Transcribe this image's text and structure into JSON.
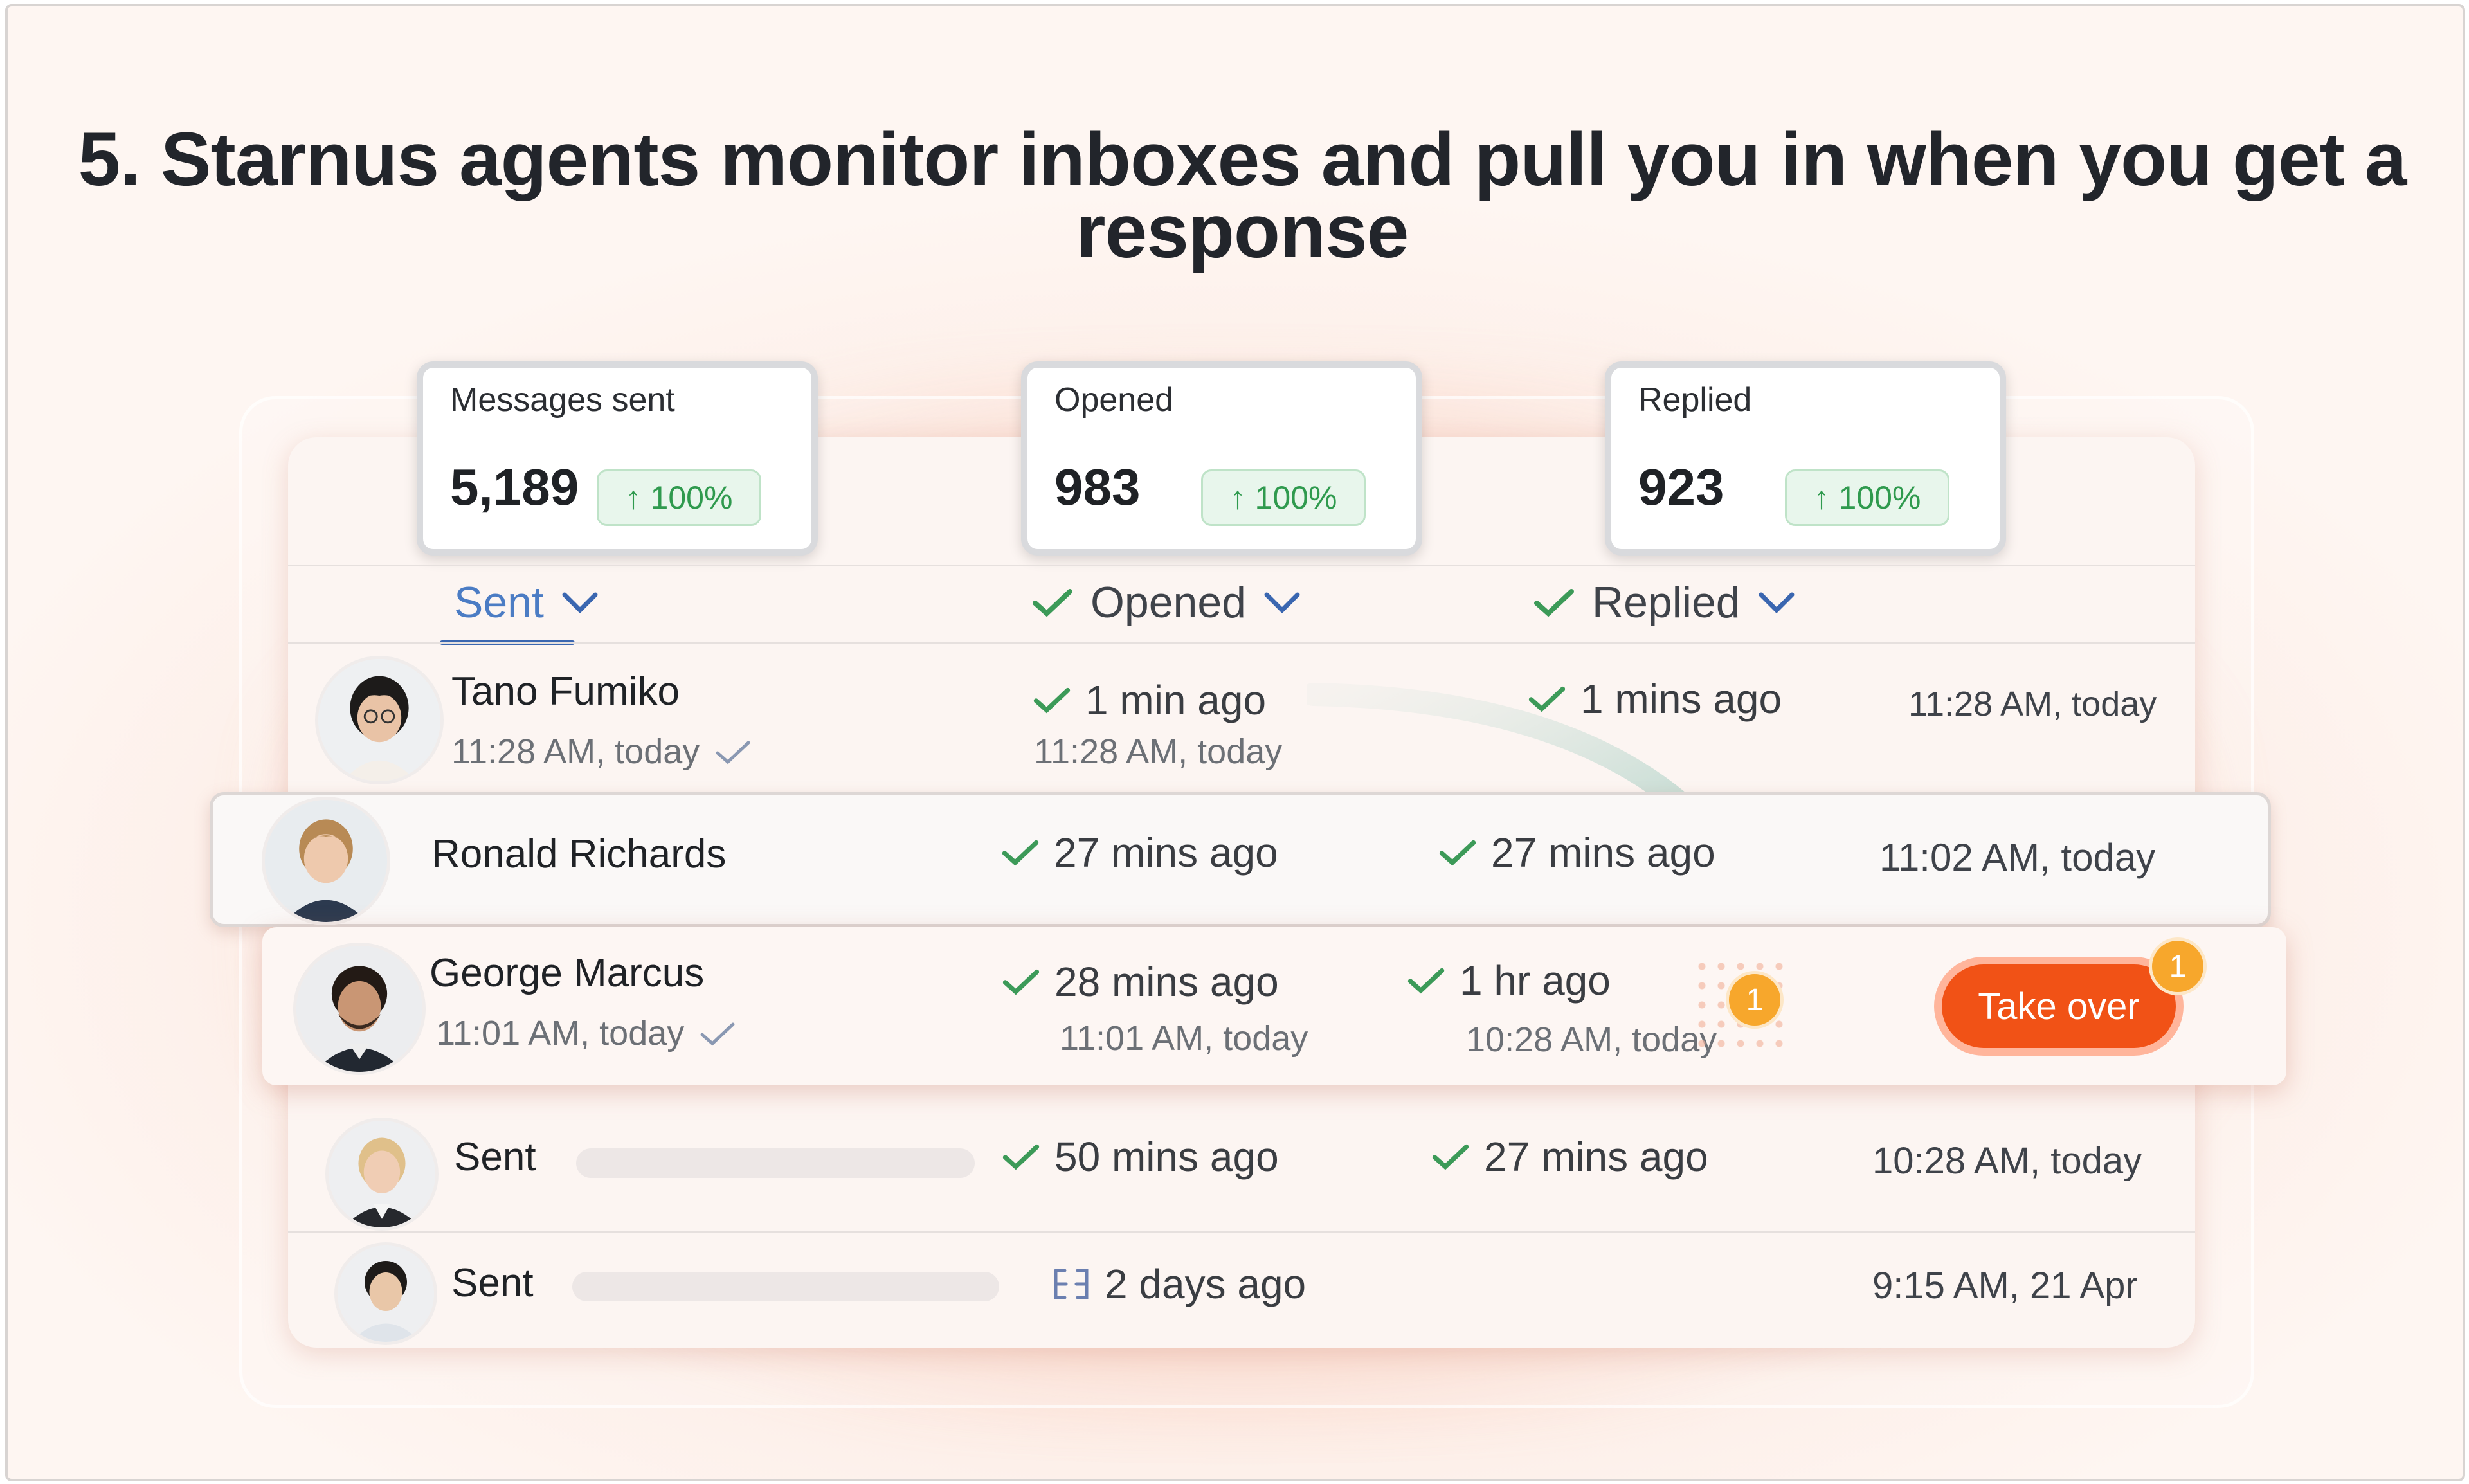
{
  "headline": "5. Starnus agents monitor inboxes and pull you in when you get a response",
  "stats": [
    {
      "label": "Messages sent",
      "value": "5,189",
      "change": "100%"
    },
    {
      "label": "Opened",
      "value": "983",
      "change": "100%"
    },
    {
      "label": "Replied",
      "value": "923",
      "change": "100%"
    }
  ],
  "columns": {
    "sent": "Sent",
    "opened": "Opened",
    "replied": "Replied"
  },
  "rows": [
    {
      "name": "Tano Fumiko",
      "sub": "11:28 AM, today",
      "opened": "1 min ago",
      "opened_sub": "11:28 AM, today",
      "replied": "1 mins ago",
      "time": "11:28 AM, today"
    },
    {
      "name": "Ronald Richards",
      "opened": "27 mins ago",
      "replied": "27 mins ago",
      "time": "11:02 AM, today"
    },
    {
      "name": "George Marcus",
      "sub": "11:01 AM, today",
      "opened": "28 mins ago",
      "opened_sub": "11:01 AM, today",
      "replied": "1 hr ago",
      "replied_sub": "10:28 AM, today",
      "notification": "1"
    },
    {
      "name": "Sent",
      "opened": "50 mins ago",
      "replied": "27 mins ago",
      "time": "10:28 AM, today"
    },
    {
      "name": "Sent",
      "opened": "2 days ago",
      "time": "9:15 AM, 21 Apr"
    }
  ],
  "take_over": {
    "label": "Take over",
    "badge": "1"
  },
  "colors": {
    "accent": "#f15216",
    "check": "#3c9a58",
    "tab": "#3a66b0"
  }
}
